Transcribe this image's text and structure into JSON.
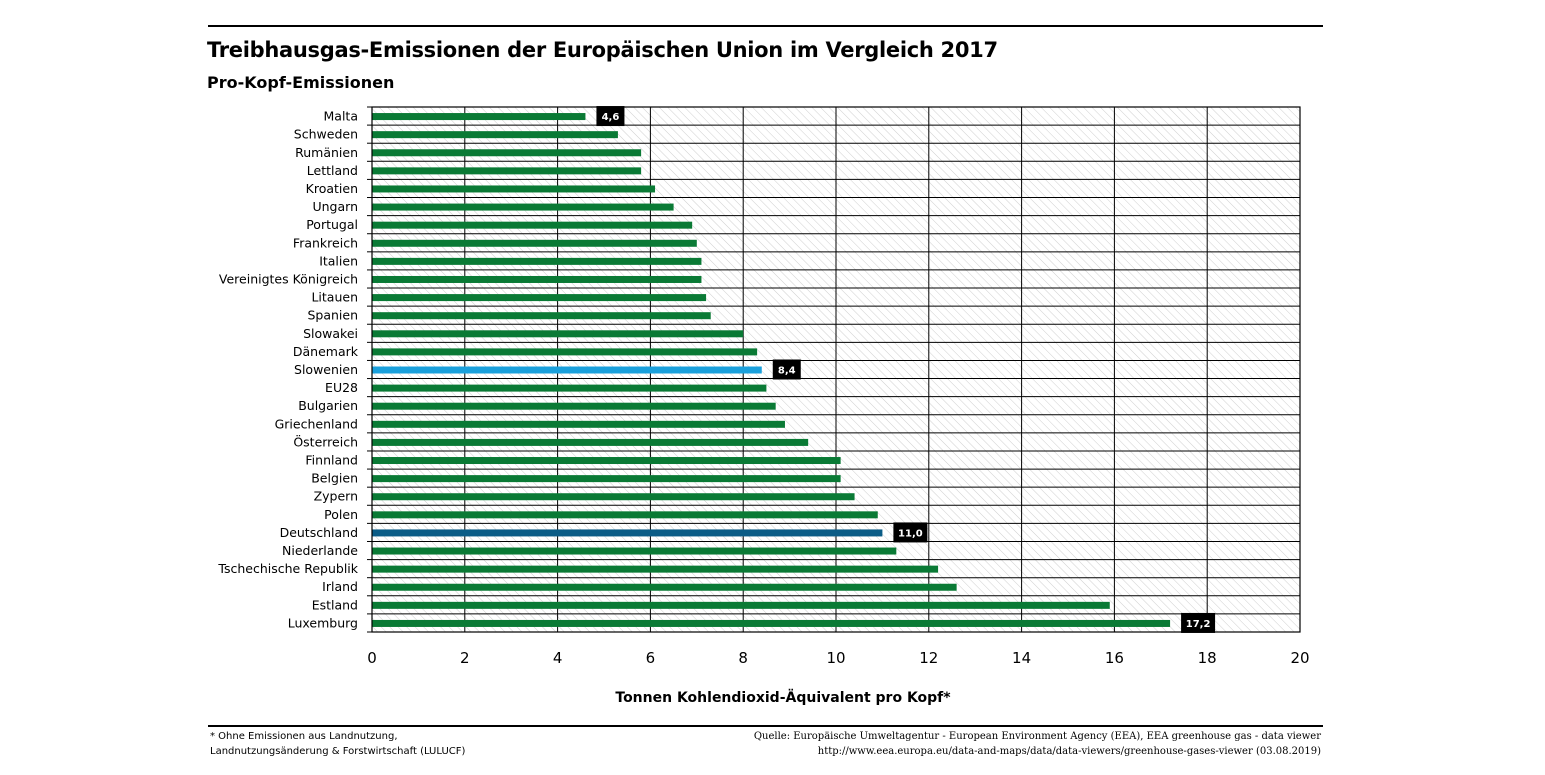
{
  "header": {
    "title": "Treibhausgas-Emissionen der Europäischen Union im Vergleich 2017",
    "subtitle": "Pro-Kopf-Emissionen"
  },
  "footer": {
    "footnote_line1": "* Ohne Emissionen aus Landnutzung,",
    "footnote_line2": "Landnutzungsänderung & Forstwirtschaft (LULUCF)",
    "source_line1": "Quelle: Europäische Umweltagentur - European Environment Agency (EEA), EEA greenhouse gas - data viewer",
    "source_line2": "http://www.eea.europa.eu/data-and-maps/data/data-viewers/greenhouse-gases-viewer (03.08.2019)"
  },
  "colors": {
    "default_bar": "#0a7a35",
    "slovenia_bar": "#1aa0dc",
    "germany_bar": "#0b5c86",
    "label_box": "#000000",
    "hatch": "#c8c8c8"
  },
  "chart_data": {
    "type": "bar",
    "orientation": "horizontal",
    "title": "Treibhausgas-Emissionen der Europäischen Union im Vergleich 2017",
    "subtitle": "Pro-Kopf-Emissionen",
    "xlabel": "Tonnen Kohlendioxid-Äquivalent pro Kopf*",
    "ylabel": "",
    "xlim": [
      0,
      20
    ],
    "xticks": [
      0,
      2,
      4,
      6,
      8,
      10,
      12,
      14,
      16,
      18,
      20
    ],
    "grid": true,
    "categories": [
      "Malta",
      "Schweden",
      "Rumänien",
      "Lettland",
      "Kroatien",
      "Ungarn",
      "Portugal",
      "Frankreich",
      "Italien",
      "Vereinigtes Königreich",
      "Litauen",
      "Spanien",
      "Slowakei",
      "Dänemark",
      "Slowenien",
      "EU28",
      "Bulgarien",
      "Griechenland",
      "Österreich",
      "Finnland",
      "Belgien",
      "Zypern",
      "Polen",
      "Deutschland",
      "Niederlande",
      "Tschechische Republik",
      "Irland",
      "Estland",
      "Luxemburg"
    ],
    "values": [
      4.6,
      5.3,
      5.8,
      5.8,
      6.1,
      6.5,
      6.9,
      7.0,
      7.1,
      7.1,
      7.2,
      7.3,
      8.0,
      8.3,
      8.4,
      8.5,
      8.7,
      8.9,
      9.4,
      10.1,
      10.1,
      10.4,
      10.9,
      11.0,
      11.3,
      12.2,
      12.6,
      15.9,
      17.2
    ],
    "highlights": [
      {
        "category": "Slowenien",
        "color": "#1aa0dc"
      },
      {
        "category": "Deutschland",
        "color": "#0b5c86"
      }
    ],
    "data_labels": [
      {
        "category": "Malta",
        "text": "4,6"
      },
      {
        "category": "Slowenien",
        "text": "8,4"
      },
      {
        "category": "Deutschland",
        "text": "11,0"
      },
      {
        "category": "Luxemburg",
        "text": "17,2"
      }
    ]
  }
}
